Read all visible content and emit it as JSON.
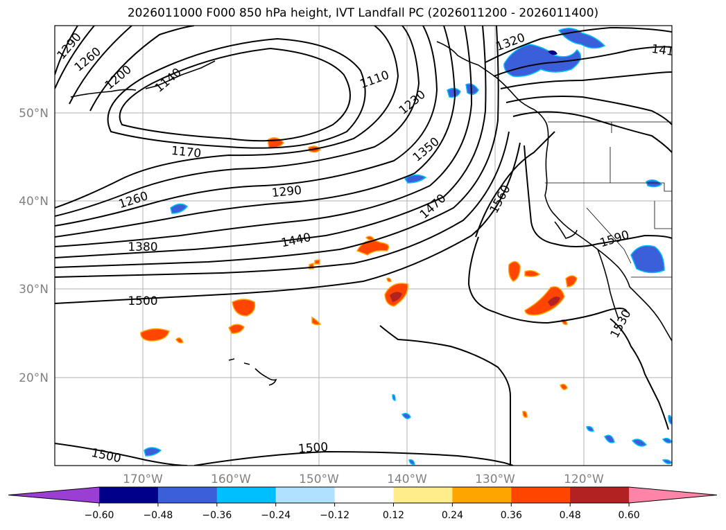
{
  "title": "2026011000 F000 850 hPa height, IVT Landfall PC (2026011200 - 2026011400)",
  "lat_labels": [
    "50°N",
    "40°N",
    "30°N",
    "20°N"
  ],
  "lon_labels": [
    "170°W",
    "160°W",
    "150°W",
    "140°W",
    "130°W",
    "120°W"
  ],
  "contour_labels": [
    "1290",
    "1260",
    "1200",
    "1140",
    "1170",
    "1260",
    "1290",
    "1380",
    "1440",
    "1500",
    "1110",
    "1230",
    "1350",
    "1470",
    "1560",
    "1320",
    "1590",
    "1530",
    "1500",
    "1500",
    "141"
  ],
  "colorbar": {
    "ticks": [
      "−0.60",
      "−0.48",
      "−0.36",
      "−0.24",
      "−0.12",
      "0.12",
      "0.24",
      "0.36",
      "0.48",
      "0.60"
    ],
    "colors": [
      "#9b3fd4",
      "#00008b",
      "#3b5fd9",
      "#00bfff",
      "#b0e2ff",
      "#ffffff",
      "#ffec8b",
      "#ffa500",
      "#ff4500",
      "#b22222",
      "#ff85a8"
    ]
  },
  "colors": {
    "land_outline": "#000000",
    "grid": "#b0b0b0",
    "positive": "#ff4500",
    "negative": "#3b5fd9"
  }
}
